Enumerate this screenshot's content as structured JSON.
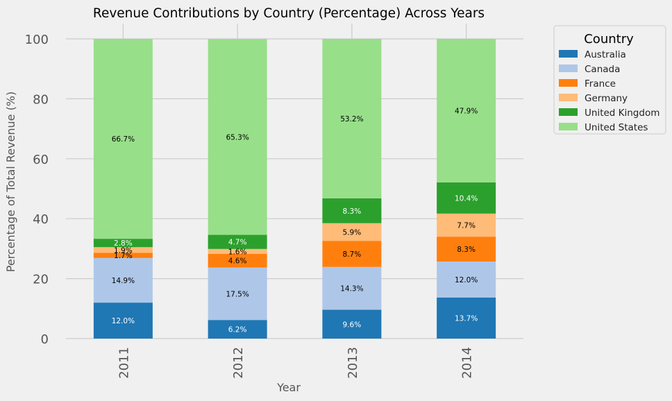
{
  "chart_data": {
    "type": "bar",
    "stacked": true,
    "title": "Revenue Contributions by Country (Percentage) Across Years",
    "xlabel": "Year",
    "ylabel": "Percentage of Total Revenue (%)",
    "categories": [
      "2011",
      "2012",
      "2013",
      "2014"
    ],
    "ylim": [
      0,
      100
    ],
    "yticks": [
      "0",
      "20",
      "40",
      "60",
      "80",
      "100"
    ],
    "grid": true,
    "legend_title": "Country",
    "legend_position": "outside-top-right",
    "series": [
      {
        "name": "Australia",
        "color": "#1f77b4",
        "label_color": "#ffffff",
        "values": [
          12.0,
          6.2,
          9.6,
          13.7
        ],
        "labels": [
          "12.0%",
          "6.2%",
          "9.6%",
          "13.7%"
        ]
      },
      {
        "name": "Canada",
        "color": "#aec7e8",
        "label_color": "#000000",
        "values": [
          14.9,
          17.5,
          14.3,
          12.0
        ],
        "labels": [
          "14.9%",
          "17.5%",
          "14.3%",
          "12.0%"
        ]
      },
      {
        "name": "France",
        "color": "#ff7f0e",
        "label_color": "#000000",
        "values": [
          1.7,
          4.6,
          8.7,
          8.3
        ],
        "labels": [
          "1.7%",
          "4.6%",
          "8.7%",
          "8.3%"
        ]
      },
      {
        "name": "Germany",
        "color": "#ffbb78",
        "label_color": "#000000",
        "values": [
          1.9,
          1.6,
          5.9,
          7.7
        ],
        "labels": [
          "1.9%",
          "1.6%",
          "5.9%",
          "7.7%"
        ]
      },
      {
        "name": "United Kingdom",
        "color": "#2ca02c",
        "label_color": "#ffffff",
        "values": [
          2.8,
          4.7,
          8.3,
          10.4
        ],
        "labels": [
          "2.8%",
          "4.7%",
          "8.3%",
          "10.4%"
        ]
      },
      {
        "name": "United States",
        "color": "#98df8a",
        "label_color": "#000000",
        "values": [
          66.7,
          65.3,
          53.2,
          47.9
        ],
        "labels": [
          "66.7%",
          "65.3%",
          "53.2%",
          "47.9%"
        ]
      }
    ]
  }
}
